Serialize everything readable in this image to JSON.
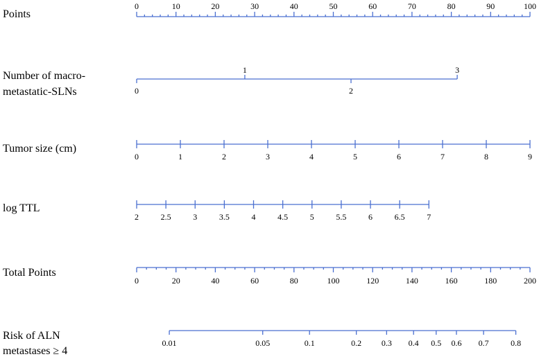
{
  "chart_data": {
    "type": "nomogram",
    "axis_color": "#4a6fd0",
    "rows": [
      {
        "key": "points",
        "label_lines": [
          "Points"
        ],
        "range": [
          0,
          100
        ],
        "major_ticks": [
          0,
          10,
          20,
          30,
          40,
          50,
          60,
          70,
          80,
          90,
          100
        ],
        "tick_labels": [
          "0",
          "10",
          "20",
          "30",
          "40",
          "50",
          "60",
          "70",
          "80",
          "90",
          "100"
        ],
        "minor_step": 2,
        "label_side": "above"
      },
      {
        "key": "macro_slns",
        "label_lines": [
          "Number of macro-",
          "metastatic-SLNs"
        ],
        "scale": [
          {
            "value": 0,
            "points": 0
          },
          {
            "value": 1,
            "points": 27.5
          },
          {
            "value": 2,
            "points": 54.5
          },
          {
            "value": 3,
            "points": 81.5
          }
        ],
        "tick_labels": [
          "0",
          "1",
          "2",
          "3"
        ],
        "label_side": "alternate"
      },
      {
        "key": "tumor_size",
        "label_lines": [
          "Tumor size (cm)"
        ],
        "scale": [
          {
            "value": 0,
            "points": 0
          },
          {
            "value": 9,
            "points": 100
          }
        ],
        "major_ticks": [
          0,
          1,
          2,
          3,
          4,
          5,
          6,
          7,
          8,
          9
        ],
        "tick_labels": [
          "0",
          "1",
          "2",
          "3",
          "4",
          "5",
          "6",
          "7",
          "8",
          "9"
        ],
        "label_side": "below"
      },
      {
        "key": "log_ttl",
        "label_lines": [
          "log TTL"
        ],
        "scale": [
          {
            "value": 2,
            "points": 0
          },
          {
            "value": 7,
            "points": 74.3
          }
        ],
        "major_ticks": [
          2,
          2.5,
          3,
          3.5,
          4,
          4.5,
          5,
          5.5,
          6,
          6.5,
          7
        ],
        "tick_labels": [
          "2",
          "2.5",
          "3",
          "3.5",
          "4",
          "4.5",
          "5",
          "5.5",
          "6",
          "6.5",
          "7"
        ],
        "label_side": "below"
      },
      {
        "key": "total_points",
        "label_lines": [
          "Total Points"
        ],
        "range": [
          0,
          200
        ],
        "major_ticks": [
          0,
          20,
          40,
          60,
          80,
          100,
          120,
          140,
          160,
          180,
          200
        ],
        "tick_labels": [
          "0",
          "20",
          "40",
          "60",
          "80",
          "100",
          "120",
          "140",
          "160",
          "180",
          "200"
        ],
        "minor_step": 5,
        "label_side": "below"
      },
      {
        "key": "risk",
        "label_lines": [
          "Risk of ALN",
          "metastases ≥ 4"
        ],
        "ticks_total_points": [
          16.6,
          64.1,
          87.9,
          111.7,
          127.1,
          140.8,
          152.3,
          162.6,
          176.4,
          192.8
        ],
        "tick_labels": [
          "0.01",
          "0.05",
          "0.1",
          "0.2",
          "0.3",
          "0.4",
          "0.5",
          "0.6",
          "0.7",
          "0.8"
        ],
        "label_side": "below"
      }
    ]
  }
}
